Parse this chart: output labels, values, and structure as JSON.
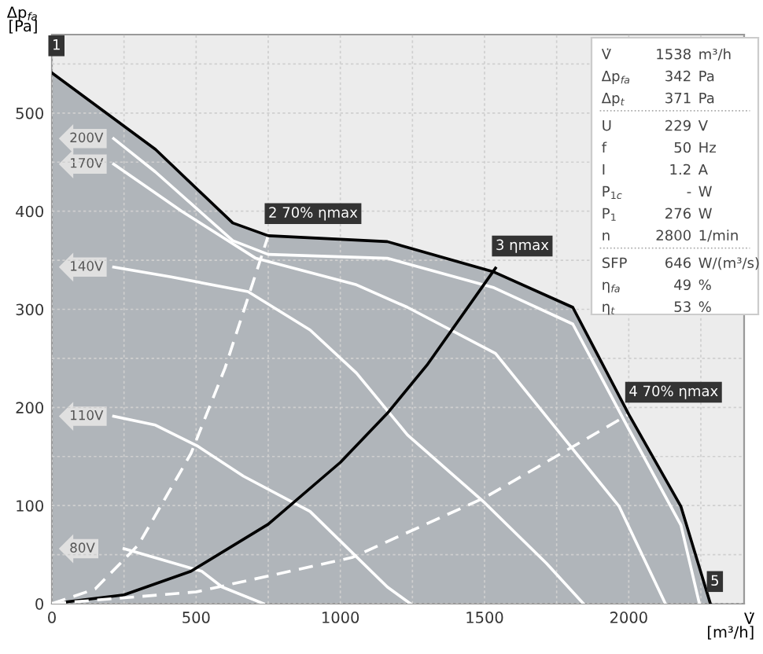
{
  "chart_data": [
    {
      "type": "line",
      "xlabel": "V̇\n[m³/h]",
      "ylabel": "Δp$_{fa}$\n[Pa]",
      "xlim": [
        0,
        2400
      ],
      "ylim": [
        0,
        580
      ],
      "xticks": [
        0,
        {
          "value": 250,
          "label": null
        },
        500,
        {
          "value": 750,
          "label": null
        },
        1000,
        {
          "value": 1250,
          "label": null
        },
        1500,
        {
          "value": 1750,
          "label": null
        },
        2000,
        {
          "value": 2250,
          "label": null
        }
      ],
      "yticks": [
        0,
        {
          "value": 50,
          "label": null
        },
        100,
        {
          "value": 150,
          "label": null
        },
        200,
        {
          "value": 250,
          "label": null
        },
        300,
        {
          "value": 350,
          "label": null
        },
        400,
        {
          "value": 450,
          "label": null
        },
        500,
        {
          "value": 550,
          "label": null
        }
      ],
      "grid": true,
      "line_style": "solid",
      "marker": "none",
      "series": [
        {
          "type": "area",
          "color": "#b0b5ba",
          "x": [
            0,
            359,
            627,
            750,
            1163,
            1533,
            1806,
            2000,
            2181,
            2283
          ],
          "values": [
            541,
            463,
            388,
            375,
            369,
            338,
            302,
            193,
            99,
            0
          ]
        },
        {
          "name": "200V",
          "color": "#ffffff",
          "x": [
            214,
            359,
            627,
            750,
            1163,
            1533,
            1806,
            2000,
            2181,
            2245
          ],
          "values": [
            474,
            440,
            370,
            356,
            352,
            322,
            285,
            178,
            80,
            0
          ]
        },
        {
          "name": "170V",
          "color": "#ffffff",
          "x": [
            214,
            450,
            707,
            1056,
            1233,
            1538,
            1967,
            2127
          ],
          "values": [
            448,
            400,
            352,
            325,
            302,
            255,
            99,
            0
          ]
        },
        {
          "name": "140V",
          "color": "#ffffff",
          "x": [
            214,
            413,
            680,
            895,
            1056,
            1233,
            1500,
            1715,
            1843
          ],
          "values": [
            343,
            333,
            318,
            279,
            235,
            172,
            103,
            41,
            0
          ]
        },
        {
          "name": "110V",
          "color": "#ffffff",
          "x": [
            214,
            359,
            503,
            664,
            895,
            1163,
            1243
          ],
          "values": [
            191,
            182,
            161,
            130,
            94,
            17,
            0
          ]
        },
        {
          "name": "80V",
          "color": "#ffffff",
          "x": [
            250,
            520,
            590,
            734
          ],
          "values": [
            56,
            33,
            17,
            0
          ]
        },
        {
          "color": "#000000",
          "x": [
            0,
            250,
            482,
            750,
            1000,
            1163,
            1300,
            1538
          ],
          "values": [
            0,
            9,
            33,
            81,
            144,
            194,
            243,
            342
          ]
        },
        {
          "color": "#ffffff",
          "line_style": "dashed",
          "x": [
            0,
            150,
            300,
            482,
            600,
            750
          ],
          "values": [
            0,
            15,
            60,
            153,
            240,
            375
          ]
        },
        {
          "color": "#ffffff",
          "line_style": "dashed",
          "x": [
            0,
            500,
            1040,
            1500,
            2000
          ],
          "values": [
            0,
            12,
            47,
            108,
            193
          ]
        }
      ],
      "annotations": [
        {
          "text": "1",
          "x": 0,
          "y": 546
        },
        {
          "text": "2 70% ηmax",
          "x": 750,
          "y": 375
        },
        {
          "text": "3 ηmax",
          "x": 1538,
          "y": 342
        },
        {
          "text": "4 70% ηmax",
          "x": 2000,
          "y": 193
        },
        {
          "text": "5",
          "x": 2283,
          "y": 0
        }
      ]
    },
    {
      "type": "other",
      "annotations": [
        "V̇",
        "1538",
        "m³/h",
        "Δp$_{fa}$",
        "342",
        "Pa",
        "Δp$_{t}$",
        "371",
        "Pa",
        "U",
        "229",
        "V",
        "f",
        "50",
        "Hz",
        "I",
        "1.2",
        "A",
        "P$_{1c}$",
        "-",
        "W",
        "P$_{1}$",
        "276",
        "W",
        "n",
        "2800",
        "1/min",
        "SFP",
        "646",
        "W/(m³/s)",
        "η$_{fa}$",
        "49",
        "%",
        "η$_{t}$",
        "53",
        "%"
      ]
    }
  ]
}
